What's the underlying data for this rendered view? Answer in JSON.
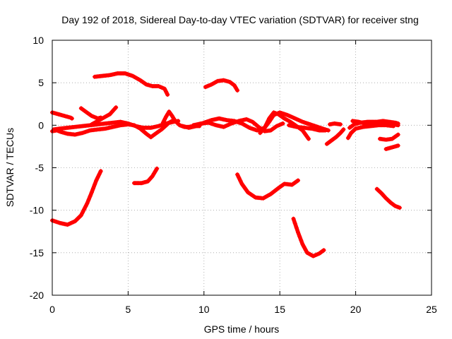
{
  "chart_data": {
    "type": "scatter",
    "title": "Day 192 of 2018, Sidereal Day-to-day VTEC variation (SDTVAR) for receiver stng",
    "xlabel": "GPS time / hours",
    "ylabel": "SDTVAR / TECUs",
    "xlim": [
      0,
      25
    ],
    "ylim": [
      -20,
      10
    ],
    "xticks": [
      0,
      5,
      10,
      15,
      20,
      25
    ],
    "yticks": [
      -20,
      -15,
      -10,
      -5,
      0,
      5,
      10
    ],
    "grid": true,
    "marker": "plus",
    "color": "#ff0000",
    "series": [
      {
        "name": "arc-01",
        "points": [
          [
            0.0,
            1.5
          ],
          [
            0.4,
            1.3
          ],
          [
            0.8,
            1.1
          ],
          [
            1.2,
            0.9
          ],
          [
            1.3,
            0.8
          ]
        ]
      },
      {
        "name": "arc-02",
        "points": [
          [
            0.0,
            -0.7
          ],
          [
            0.3,
            -0.6
          ],
          [
            0.6,
            -0.8
          ],
          [
            1.0,
            -1.0
          ],
          [
            1.5,
            -1.1
          ],
          [
            2.0,
            -0.9
          ],
          [
            2.5,
            -0.6
          ],
          [
            3.0,
            -0.5
          ],
          [
            3.5,
            -0.4
          ],
          [
            4.0,
            -0.2
          ],
          [
            4.5,
            0.0
          ],
          [
            5.0,
            0.1
          ],
          [
            5.4,
            0.0
          ],
          [
            5.8,
            -0.4
          ],
          [
            6.2,
            -1.0
          ],
          [
            6.5,
            -1.4
          ],
          [
            6.8,
            -1.0
          ],
          [
            7.2,
            -0.5
          ],
          [
            7.7,
            0.3
          ],
          [
            8.0,
            0.6
          ]
        ]
      },
      {
        "name": "arc-03",
        "points": [
          [
            0.1,
            -0.5
          ],
          [
            0.5,
            -0.4
          ],
          [
            1.0,
            -0.3
          ],
          [
            1.5,
            -0.2
          ],
          [
            2.0,
            -0.1
          ],
          [
            2.5,
            0.0
          ],
          [
            3.0,
            0.1
          ],
          [
            3.5,
            0.2
          ],
          [
            4.0,
            0.3
          ],
          [
            4.5,
            0.4
          ],
          [
            5.0,
            0.2
          ],
          [
            5.5,
            -0.1
          ],
          [
            6.0,
            -0.3
          ],
          [
            6.5,
            -0.3
          ],
          [
            7.0,
            -0.1
          ],
          [
            7.5,
            0.2
          ],
          [
            8.0,
            0.4
          ],
          [
            8.3,
            0.5
          ]
        ]
      },
      {
        "name": "arc-04",
        "points": [
          [
            1.9,
            2.0
          ],
          [
            2.2,
            1.6
          ],
          [
            2.6,
            1.1
          ],
          [
            3.0,
            0.8
          ],
          [
            3.2,
            0.9
          ]
        ]
      },
      {
        "name": "arc-05",
        "points": [
          [
            2.6,
            0.1
          ],
          [
            3.0,
            0.5
          ],
          [
            3.4,
            0.9
          ],
          [
            3.8,
            1.3
          ],
          [
            4.2,
            2.1
          ]
        ]
      },
      {
        "name": "arc-06",
        "points": [
          [
            2.8,
            5.7
          ],
          [
            3.3,
            5.8
          ],
          [
            3.8,
            5.9
          ],
          [
            4.3,
            6.1
          ],
          [
            4.8,
            6.1
          ],
          [
            5.3,
            5.8
          ],
          [
            5.8,
            5.3
          ],
          [
            6.2,
            4.8
          ],
          [
            6.6,
            4.6
          ],
          [
            7.0,
            4.6
          ],
          [
            7.4,
            4.3
          ],
          [
            7.6,
            3.6
          ]
        ]
      },
      {
        "name": "arc-07",
        "points": [
          [
            0.0,
            -11.2
          ],
          [
            0.5,
            -11.5
          ],
          [
            1.0,
            -11.7
          ],
          [
            1.5,
            -11.3
          ],
          [
            1.9,
            -10.6
          ],
          [
            2.3,
            -9.2
          ],
          [
            2.6,
            -7.9
          ],
          [
            2.9,
            -6.5
          ],
          [
            3.2,
            -5.4
          ]
        ]
      },
      {
        "name": "arc-08",
        "points": [
          [
            5.4,
            -6.8
          ],
          [
            5.9,
            -6.8
          ],
          [
            6.3,
            -6.6
          ],
          [
            6.6,
            -6.0
          ],
          [
            6.9,
            -5.1
          ]
        ]
      },
      {
        "name": "arc-09",
        "points": [
          [
            7.3,
            0.3
          ],
          [
            7.5,
            1.0
          ],
          [
            7.7,
            1.6
          ],
          [
            7.9,
            1.1
          ],
          [
            8.1,
            0.5
          ],
          [
            8.4,
            0.0
          ],
          [
            8.7,
            -0.2
          ],
          [
            9.0,
            -0.2
          ],
          [
            9.3,
            -0.1
          ],
          [
            9.7,
            -0.1
          ]
        ]
      },
      {
        "name": "arc-10",
        "points": [
          [
            8.6,
            -0.1
          ],
          [
            9.0,
            -0.3
          ],
          [
            9.5,
            -0.1
          ],
          [
            10.0,
            0.3
          ],
          [
            10.5,
            0.6
          ],
          [
            11.0,
            0.8
          ],
          [
            11.5,
            0.6
          ],
          [
            12.0,
            0.5
          ],
          [
            12.5,
            0.2
          ],
          [
            13.0,
            -0.3
          ],
          [
            13.5,
            -0.6
          ],
          [
            14.0,
            -0.3
          ],
          [
            14.3,
            0.4
          ],
          [
            14.6,
            1.2
          ],
          [
            15.0,
            1.5
          ],
          [
            15.5,
            1.2
          ],
          [
            16.0,
            0.8
          ],
          [
            16.5,
            0.4
          ],
          [
            17.0,
            0.1
          ],
          [
            17.5,
            -0.2
          ],
          [
            18.0,
            -0.5
          ],
          [
            18.2,
            -0.6
          ]
        ]
      },
      {
        "name": "arc-11",
        "points": [
          [
            9.3,
            0.0
          ],
          [
            9.8,
            0.2
          ],
          [
            10.3,
            0.3
          ],
          [
            10.8,
            0.0
          ],
          [
            11.3,
            -0.2
          ],
          [
            11.8,
            0.2
          ],
          [
            12.3,
            0.5
          ],
          [
            12.8,
            0.7
          ],
          [
            13.2,
            0.4
          ],
          [
            13.6,
            -0.2
          ],
          [
            14.0,
            -0.7
          ],
          [
            14.4,
            -0.6
          ],
          [
            14.8,
            -0.1
          ],
          [
            15.2,
            0.2
          ]
        ]
      },
      {
        "name": "arc-12",
        "points": [
          [
            10.1,
            4.5
          ],
          [
            10.5,
            4.8
          ],
          [
            10.9,
            5.2
          ],
          [
            11.3,
            5.3
          ],
          [
            11.7,
            5.1
          ],
          [
            12.0,
            4.7
          ],
          [
            12.2,
            4.1
          ]
        ]
      },
      {
        "name": "arc-13",
        "points": [
          [
            12.2,
            -5.8
          ],
          [
            12.5,
            -6.9
          ],
          [
            12.9,
            -7.9
          ],
          [
            13.4,
            -8.5
          ],
          [
            13.9,
            -8.6
          ],
          [
            14.4,
            -8.1
          ],
          [
            14.9,
            -7.4
          ],
          [
            15.3,
            -6.9
          ],
          [
            15.8,
            -7.0
          ],
          [
            16.2,
            -6.5
          ]
        ]
      },
      {
        "name": "arc-14",
        "points": [
          [
            13.7,
            -0.9
          ],
          [
            14.0,
            -0.3
          ],
          [
            14.3,
            0.8
          ],
          [
            14.6,
            1.5
          ],
          [
            14.9,
            1.3
          ],
          [
            15.3,
            0.8
          ],
          [
            15.7,
            0.4
          ],
          [
            16.1,
            -0.1
          ],
          [
            16.5,
            -0.6
          ],
          [
            16.9,
            -1.6
          ]
        ]
      },
      {
        "name": "arc-15",
        "points": [
          [
            15.6,
            0.0
          ],
          [
            16.1,
            -0.2
          ],
          [
            16.6,
            -0.3
          ],
          [
            17.1,
            -0.4
          ],
          [
            17.6,
            -0.6
          ],
          [
            18.0,
            -0.6
          ]
        ]
      },
      {
        "name": "arc-16",
        "points": [
          [
            15.9,
            -11.0
          ],
          [
            16.2,
            -12.6
          ],
          [
            16.5,
            -14.0
          ],
          [
            16.8,
            -15.0
          ],
          [
            17.2,
            -15.4
          ],
          [
            17.6,
            -15.1
          ],
          [
            17.9,
            -14.7
          ]
        ]
      },
      {
        "name": "arc-17",
        "points": [
          [
            18.1,
            -2.2
          ],
          [
            18.4,
            -1.8
          ],
          [
            18.7,
            -1.4
          ],
          [
            19.0,
            -0.9
          ],
          [
            19.2,
            -0.5
          ]
        ]
      },
      {
        "name": "arc-18",
        "points": [
          [
            18.3,
            0.1
          ],
          [
            18.6,
            0.2
          ],
          [
            19.0,
            0.1
          ]
        ]
      },
      {
        "name": "arc-19",
        "points": [
          [
            19.6,
            -0.3
          ],
          [
            19.9,
            0.1
          ],
          [
            20.3,
            0.3
          ],
          [
            20.8,
            0.4
          ],
          [
            21.3,
            0.4
          ],
          [
            21.8,
            0.3
          ],
          [
            22.3,
            0.2
          ],
          [
            22.8,
            0.0
          ]
        ]
      },
      {
        "name": "arc-20",
        "points": [
          [
            19.5,
            -1.5
          ],
          [
            19.7,
            -0.9
          ],
          [
            20.0,
            -0.4
          ],
          [
            20.5,
            -0.2
          ],
          [
            21.0,
            -0.1
          ],
          [
            21.5,
            0.0
          ],
          [
            22.0,
            0.0
          ],
          [
            22.5,
            -0.1
          ]
        ]
      },
      {
        "name": "arc-21",
        "points": [
          [
            19.8,
            0.5
          ],
          [
            20.2,
            0.4
          ],
          [
            20.6,
            0.2
          ],
          [
            21.0,
            0.3
          ],
          [
            21.4,
            0.4
          ],
          [
            21.8,
            0.5
          ],
          [
            22.2,
            0.4
          ],
          [
            22.6,
            0.3
          ],
          [
            22.8,
            0.2
          ]
        ]
      },
      {
        "name": "arc-22",
        "points": [
          [
            21.6,
            -1.6
          ],
          [
            22.0,
            -1.7
          ],
          [
            22.4,
            -1.6
          ],
          [
            22.8,
            -1.1
          ]
        ]
      },
      {
        "name": "arc-23",
        "points": [
          [
            22.0,
            -2.8
          ],
          [
            22.4,
            -2.6
          ],
          [
            22.8,
            -2.4
          ]
        ]
      },
      {
        "name": "arc-24",
        "points": [
          [
            21.4,
            -7.5
          ],
          [
            21.7,
            -8.0
          ],
          [
            22.0,
            -8.6
          ],
          [
            22.3,
            -9.1
          ],
          [
            22.6,
            -9.5
          ],
          [
            22.9,
            -9.7
          ]
        ]
      }
    ]
  }
}
